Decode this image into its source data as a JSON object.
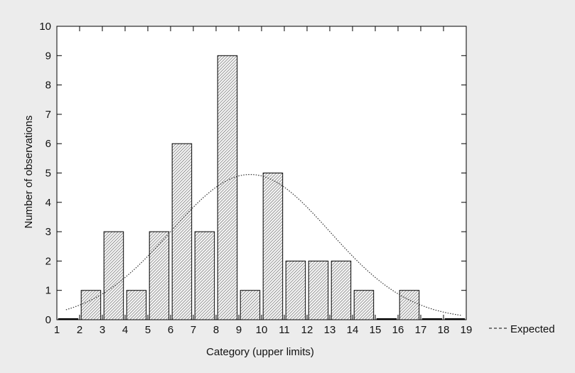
{
  "chart_data": {
    "type": "bar",
    "title": "",
    "xlabel": "Category (upper limits)",
    "ylabel": "Number of observations",
    "xlim": [
      1,
      19
    ],
    "ylim": [
      0,
      10
    ],
    "x_ticks": [
      1,
      2,
      3,
      4,
      5,
      6,
      7,
      8,
      9,
      10,
      11,
      12,
      13,
      14,
      15,
      16,
      17,
      18,
      19
    ],
    "y_ticks": [
      0,
      1,
      2,
      3,
      4,
      5,
      6,
      7,
      8,
      9,
      10
    ],
    "bin_upper_limits": [
      2,
      3,
      4,
      5,
      6,
      7,
      8,
      9,
      10,
      11,
      12,
      13,
      14,
      15,
      16,
      17,
      18,
      19
    ],
    "values": [
      0,
      1,
      3,
      1,
      3,
      6,
      3,
      9,
      1,
      5,
      2,
      2,
      2,
      1,
      0,
      1,
      0,
      0
    ],
    "bar_fill": "hatched",
    "grid": false,
    "expected_curve": {
      "label": "Expected",
      "style": "dotted",
      "mean": 9.5,
      "sd": 3.5,
      "peak": 4.95,
      "x_range": [
        1.4,
        18.8
      ]
    },
    "legend": {
      "position": "right",
      "items": [
        {
          "symbol": "---",
          "label": "Expected"
        }
      ]
    },
    "colors": {
      "background": "#ececec",
      "plot_background": "#ffffff",
      "bar_stroke": "#000000",
      "bar_hatch_bg": "#f4f4f4",
      "bar_hatch_line": "#5a5a5a",
      "curve": "#333333"
    }
  }
}
